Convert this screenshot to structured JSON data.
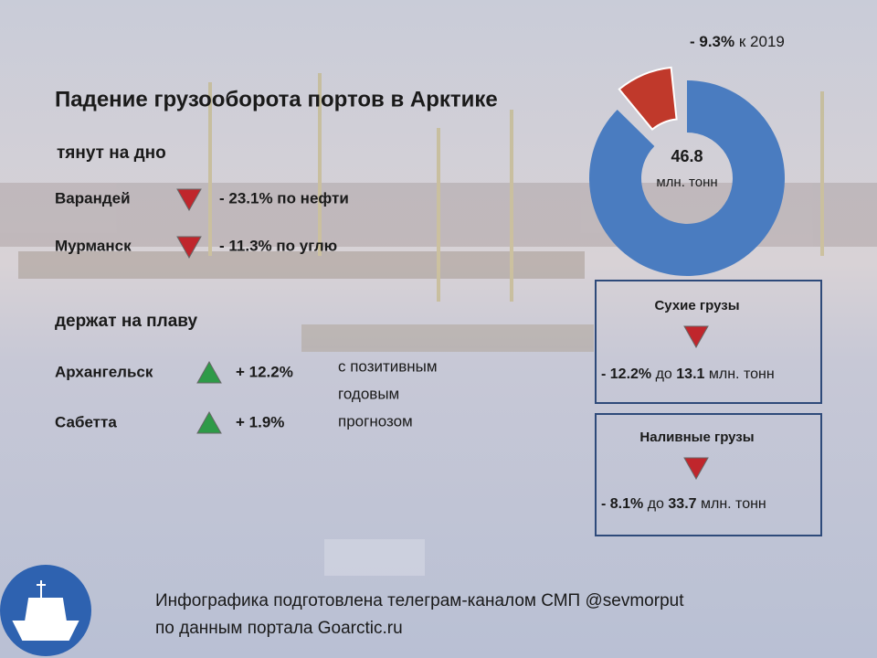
{
  "title": "Падение грузооборота портов в Арктике",
  "groups": [
    {
      "heading": "тянут на дно",
      "direction": "down",
      "items": [
        {
          "port": "Варандей",
          "change": "- 23.1% по нефти"
        },
        {
          "port": "Мурманск",
          "change": "- 11.3% по углю"
        }
      ]
    },
    {
      "heading": "держат на плаву",
      "direction": "up",
      "items": [
        {
          "port": "Архангельск",
          "change": "+ 12.2%"
        },
        {
          "port": "Сабетта",
          "change": "+ 1.9%"
        }
      ]
    }
  ],
  "side_note": [
    "с позитивным",
    "годовым",
    "прогнозом"
  ],
  "donut": {
    "total": "46.8",
    "unit": "млн. тонн",
    "slice_percent": 9.3,
    "slice_label": "- 9.3%",
    "slice_note": "к 2019"
  },
  "boxes": [
    {
      "title": "Сухие грузы",
      "change": "- 12.2%",
      "connector": "до",
      "volume": "13.1",
      "unit": "млн. тонн"
    },
    {
      "title": "Наливные грузы",
      "change": "- 8.1%",
      "connector": "до",
      "volume": "33.7",
      "unit": "млн. тонн"
    }
  ],
  "footer": [
    "Инфографика подготовлена телеграм-каналом СМП @sevmorput",
    "по данным портала Goarctic.ru"
  ]
}
